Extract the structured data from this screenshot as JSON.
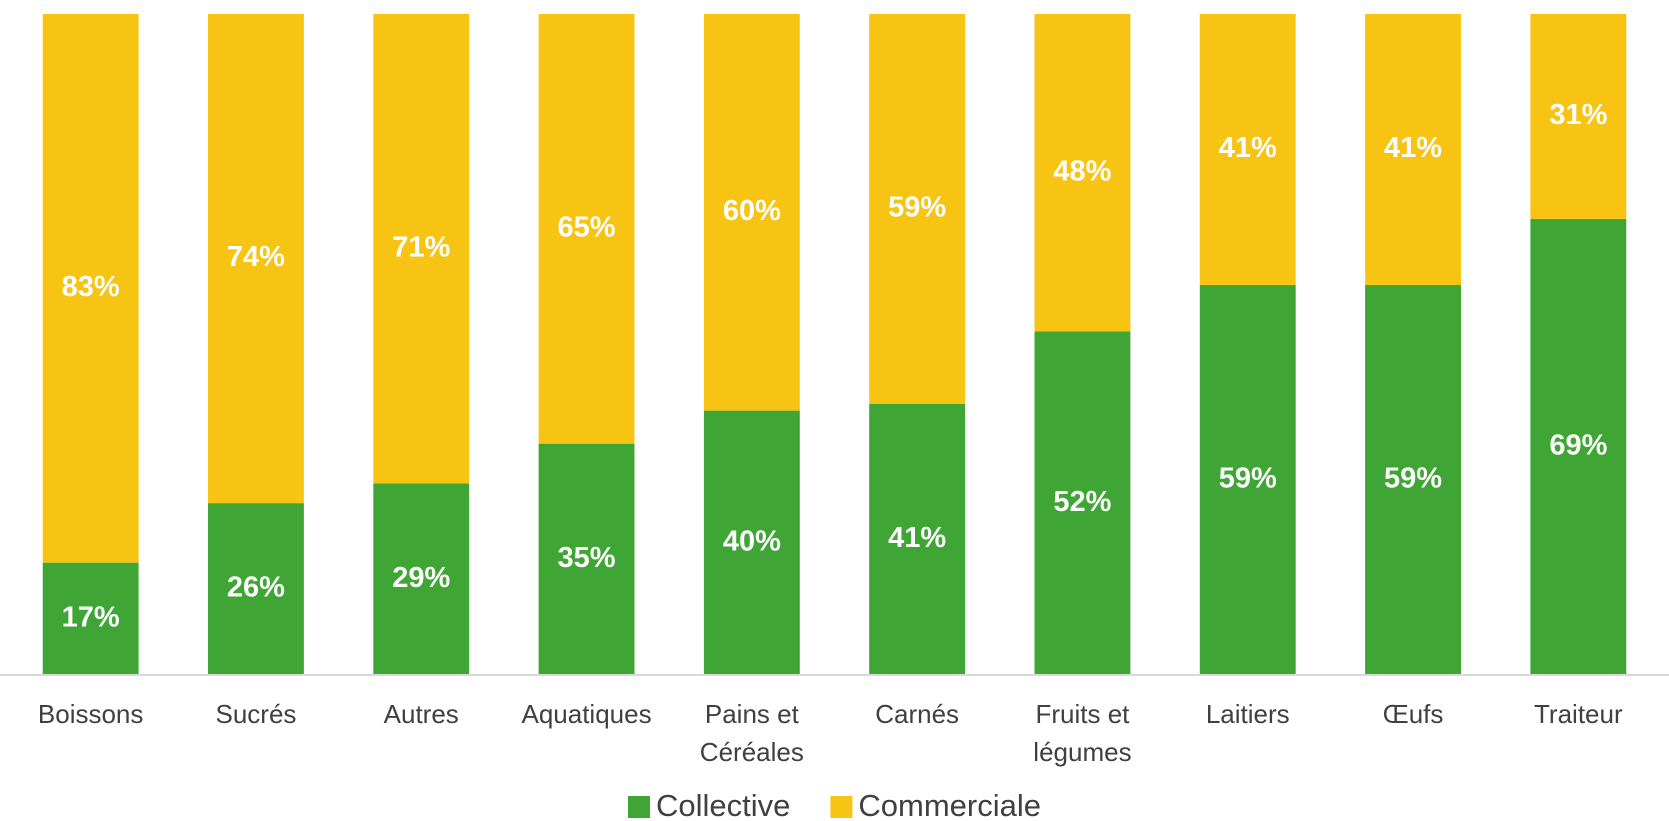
{
  "chart_data": {
    "type": "stacked_bar",
    "categories": [
      "Boissons",
      "Sucrés",
      "Autres",
      "Aquatiques",
      "Pains et Céréales",
      "Carnés",
      "Fruits et légumes",
      "Laitiers",
      "Œufs",
      "Traiteur"
    ],
    "series": [
      {
        "name": "Collective",
        "color": "#3fa535",
        "values": [
          17,
          26,
          29,
          35,
          40,
          41,
          52,
          59,
          59,
          69
        ],
        "value_labels": [
          "17%",
          "26%",
          "29%",
          "35%",
          "40%",
          "41%",
          "52%",
          "59%",
          "59%",
          "69%"
        ]
      },
      {
        "name": "Commerciale",
        "color": "#f8c414",
        "values": [
          83,
          74,
          71,
          65,
          60,
          59,
          48,
          41,
          41,
          31
        ],
        "value_labels": [
          "83%",
          "74%",
          "71%",
          "65%",
          "60%",
          "59%",
          "48%",
          "41%",
          "41%",
          "31%"
        ]
      }
    ],
    "ylim": [
      0,
      100
    ],
    "legend": "bottom"
  }
}
